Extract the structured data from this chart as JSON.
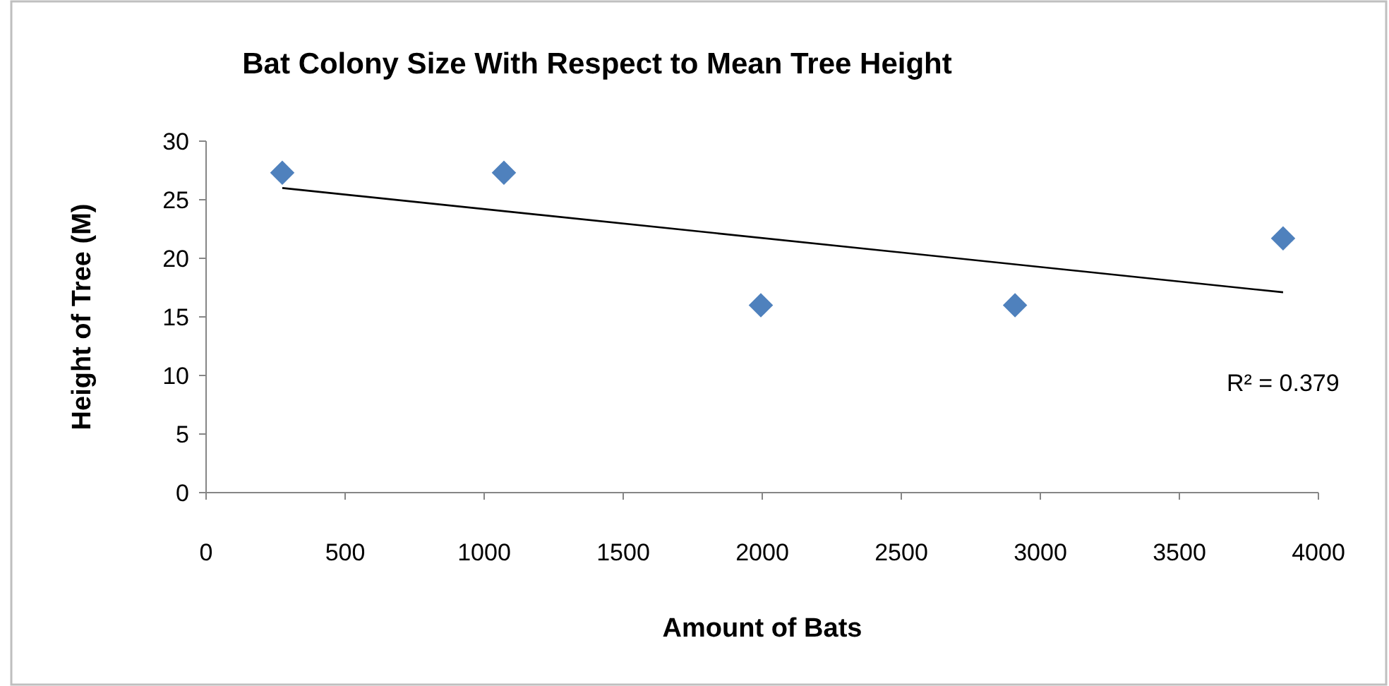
{
  "chart_data": {
    "type": "scatter",
    "title": "Bat Colony Size With Respect to Mean Tree Height",
    "xlabel": "Amount of Bats",
    "ylabel": "Height of Tree (M)",
    "xlim": [
      0,
      4000
    ],
    "ylim": [
      0,
      30
    ],
    "xticks": [
      0,
      500,
      1000,
      1500,
      2000,
      2500,
      3000,
      3500,
      4000
    ],
    "yticks": [
      0,
      5,
      10,
      15,
      20,
      25,
      30
    ],
    "marker": "diamond",
    "series": [
      {
        "color": "#4f81bd",
        "x": [
          274,
          1071,
          1995,
          2909,
          3873
        ],
        "values": [
          27.3,
          27.3,
          16.0,
          16.0,
          21.7
        ]
      },
      {
        "type": "line",
        "color": "#000000",
        "marker": "none",
        "line_style": "solid",
        "x": [
          274,
          3873
        ],
        "values": [
          26.0,
          17.1
        ]
      }
    ],
    "annotations": [
      "R² = 0.379"
    ]
  }
}
